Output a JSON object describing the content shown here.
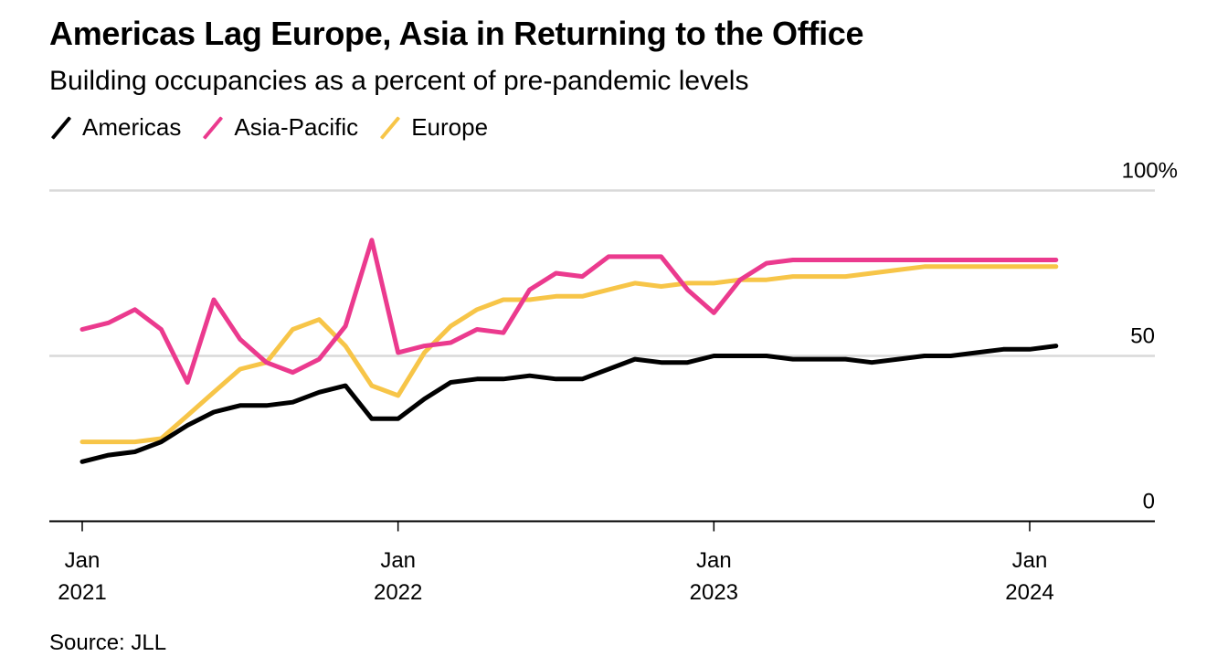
{
  "chart_data": {
    "type": "line",
    "title": "Americas Lag Europe, Asia in Returning to the Office",
    "subtitle": "Building occupancies as a percent of pre-pandemic levels",
    "xlabel": "",
    "ylabel": "",
    "ylim": [
      0,
      100
    ],
    "yticks": [
      {
        "value": 100,
        "label": "100%"
      },
      {
        "value": 50,
        "label": "50"
      },
      {
        "value": 0,
        "label": "0"
      }
    ],
    "xticks": [
      {
        "month_index": 0,
        "line1": "Jan",
        "line2": "2021"
      },
      {
        "month_index": 12,
        "line1": "Jan",
        "line2": "2022"
      },
      {
        "month_index": 24,
        "line1": "Jan",
        "line2": "2023"
      },
      {
        "month_index": 36,
        "line1": "Jan",
        "line2": "2024"
      }
    ],
    "x_start": "Jan 2021",
    "x_frequency": "monthly",
    "x_range_months": [
      -1.3,
      40.5
    ],
    "grid": true,
    "legend_position": "top-left",
    "series": [
      {
        "name": "Americas",
        "color": "#000000",
        "values": [
          18,
          20,
          21,
          24,
          29,
          33,
          35,
          35,
          36,
          39,
          41,
          31,
          31,
          37,
          42,
          43,
          43,
          44,
          43,
          43,
          46,
          49,
          48,
          48,
          50,
          50,
          50,
          49,
          49,
          49,
          48,
          49,
          50,
          50,
          51,
          52,
          52,
          53
        ]
      },
      {
        "name": "Asia-Pacific",
        "color": "#EB3A8E",
        "values": [
          58,
          60,
          64,
          58,
          42,
          67,
          55,
          48,
          45,
          49,
          59,
          85,
          51,
          53,
          54,
          58,
          57,
          70,
          75,
          74,
          80,
          80,
          80,
          70,
          63,
          73,
          78,
          79,
          79,
          79,
          79,
          79,
          79,
          79,
          79,
          79,
          79,
          79
        ]
      },
      {
        "name": "Europe",
        "color": "#F7C548",
        "values": [
          24,
          24,
          24,
          25,
          32,
          39,
          46,
          48,
          58,
          61,
          53,
          41,
          38,
          51,
          59,
          64,
          67,
          67,
          68,
          68,
          70,
          72,
          71,
          72,
          72,
          73,
          73,
          74,
          74,
          74,
          75,
          76,
          77,
          77,
          77,
          77,
          77,
          77
        ]
      }
    ]
  },
  "source": "Source: JLL"
}
